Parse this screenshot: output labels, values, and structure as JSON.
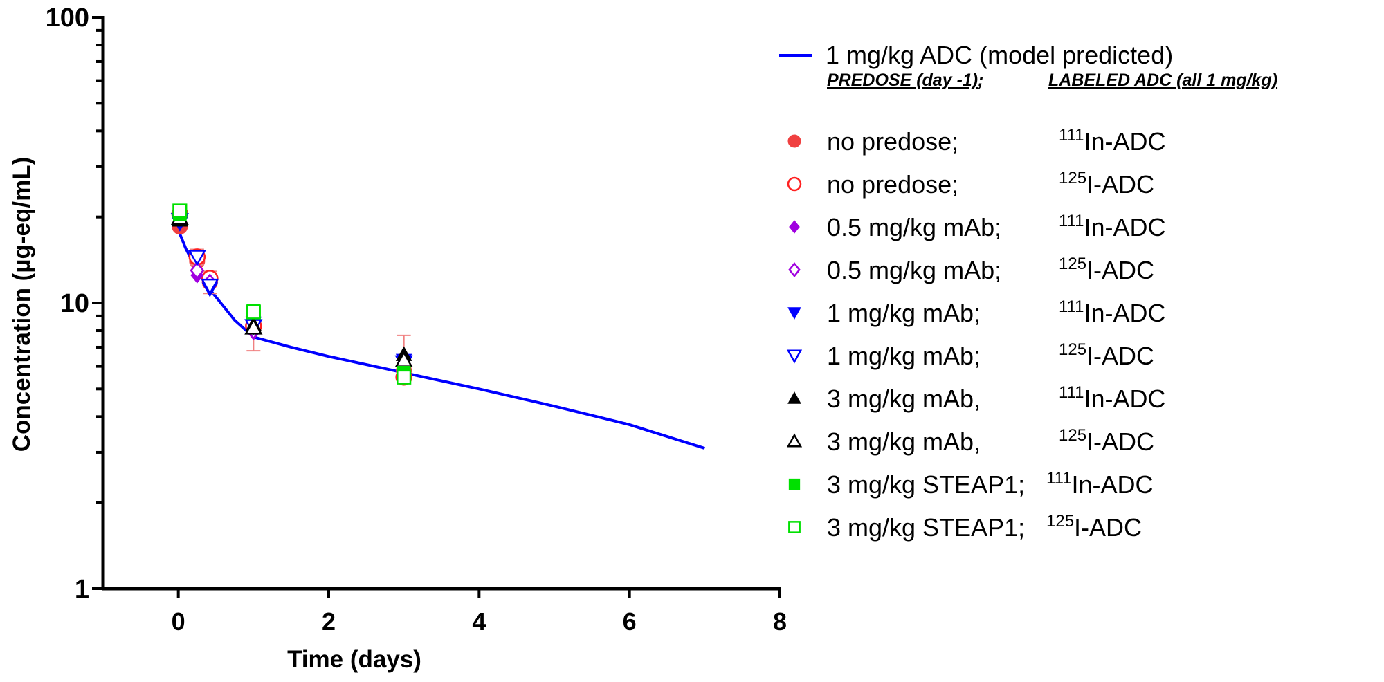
{
  "chart_data": {
    "type": "scatter",
    "title": "",
    "xlabel": "Time (days)",
    "ylabel": "Concentration (µg-eq/mL)",
    "xlim": [
      -1,
      8
    ],
    "ylim": [
      1,
      100
    ],
    "yscale": "log",
    "grid": false,
    "legend_position": "right",
    "x_ticks": [
      "0",
      "2",
      "4",
      "6",
      "8"
    ],
    "y_ticks": [
      "1",
      "10",
      "100"
    ],
    "model_line": {
      "name": "1 mg/kg ADC (model predicted)",
      "color": "#0000ff",
      "x": [
        0,
        0.1,
        0.25,
        0.4,
        0.5,
        0.75,
        1,
        1.5,
        2,
        3,
        4,
        5,
        6,
        7
      ],
      "y": [
        18,
        15.5,
        13,
        11.3,
        10.5,
        8.7,
        7.6,
        7.0,
        6.5,
        5.7,
        5.0,
        4.35,
        3.75,
        3.1
      ]
    },
    "legend_header": {
      "col1": "PREDOSE (day -1)",
      "col1_suffix": ";",
      "col2": "LABELED ADC (all 1 mg/kg)"
    },
    "series": [
      {
        "predose": "no predose;",
        "iso": "111",
        "label": "In-ADC",
        "marker": "circle",
        "filled": true,
        "color": "#f04040",
        "x": [
          0.02,
          0.25,
          0.42,
          1,
          3
        ],
        "y": [
          18.5,
          14,
          11.8,
          8.2,
          5.8
        ]
      },
      {
        "predose": "no predose;",
        "iso": "125",
        "label": "I-ADC",
        "marker": "circle",
        "filled": false,
        "color": "#ff2020",
        "x": [
          0.02,
          0.25,
          0.42,
          1,
          3
        ],
        "y": [
          20.5,
          14.5,
          12.2,
          8.3,
          5.5
        ],
        "err_low": [
          19.2,
          13.6,
          10.8,
          6.8,
          5.3
        ],
        "err_high": [
          21.8,
          15.4,
          12.9,
          9.8,
          7.7
        ]
      },
      {
        "predose": "0.5 mg/kg mAb;",
        "iso": "111",
        "label": "In-ADC",
        "marker": "diamond",
        "filled": true,
        "color": "#a000e0",
        "x": [
          0.02,
          0.25,
          0.42,
          1,
          3
        ],
        "y": [
          20,
          12.5,
          11.5,
          7.9,
          6.0
        ]
      },
      {
        "predose": "0.5 mg/kg mAb;",
        "iso": "125",
        "label": "I-ADC",
        "marker": "diamond",
        "filled": false,
        "color": "#a000e0",
        "x": [
          0.02,
          0.25,
          0.42,
          1,
          3
        ],
        "y": [
          20.5,
          13,
          11.8,
          8.0,
          6.1
        ]
      },
      {
        "predose": "1 mg/kg mAb;",
        "iso": "111",
        "label": "In-ADC",
        "marker": "triangle-down",
        "filled": true,
        "color": "#0000ff",
        "x": [
          0.02,
          0.25,
          0.42,
          1,
          3
        ],
        "y": [
          19,
          14.5,
          11.2,
          8.5,
          6.3
        ]
      },
      {
        "predose": "1 mg/kg mAb;",
        "iso": "125",
        "label": "I-ADC",
        "marker": "triangle-down",
        "filled": false,
        "color": "#0000ff",
        "x": [
          0.02,
          0.25,
          0.42,
          1,
          3
        ],
        "y": [
          19.5,
          14.5,
          11.5,
          8.3,
          6.2
        ]
      },
      {
        "predose": "3 mg/kg mAb,",
        "iso": "111",
        "label": "In-ADC",
        "marker": "triangle-up",
        "filled": true,
        "color": "#000000",
        "x": [
          0.02,
          1,
          3
        ],
        "y": [
          19.5,
          8.4,
          6.6
        ]
      },
      {
        "predose": "3 mg/kg mAb,",
        "iso": "125",
        "label": "I-ADC",
        "marker": "triangle-up",
        "filled": false,
        "color": "#000000",
        "x": [
          0.02,
          1,
          3
        ],
        "y": [
          19.8,
          8.2,
          6.3
        ]
      },
      {
        "predose": "3 mg/kg STEAP1;",
        "iso": "111",
        "label": "In-ADC",
        "marker": "square",
        "filled": true,
        "color": "#00e000",
        "x": [
          0.02,
          1,
          3
        ],
        "y": [
          20.5,
          9.4,
          5.7
        ]
      },
      {
        "predose": "3 mg/kg STEAP1;",
        "iso": "125",
        "label": "I-ADC",
        "marker": "square",
        "filled": false,
        "color": "#00e000",
        "x": [
          0.02,
          1,
          3
        ],
        "y": [
          21,
          9.3,
          5.5
        ]
      }
    ]
  }
}
